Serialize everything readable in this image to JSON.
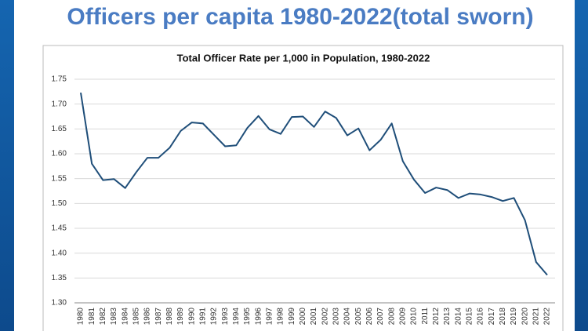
{
  "slide_title": "Officers per capita 1980-2022(total sworn)",
  "chart_data": {
    "type": "line",
    "title": "Total Officer Rate per 1,000 in Population, 1980-2022",
    "categories": [
      "1980",
      "1981",
      "1982",
      "1983",
      "1984",
      "1985",
      "1986",
      "1987",
      "1988",
      "1989",
      "1990",
      "1991",
      "1992",
      "1993",
      "1994",
      "1995",
      "1996",
      "1997",
      "1998",
      "1999",
      "2000",
      "2001",
      "2002",
      "2003",
      "2004",
      "2005",
      "2006",
      "2007",
      "2008",
      "2009",
      "2010",
      "2011",
      "2012",
      "2013",
      "2014",
      "2015",
      "2016",
      "2017",
      "2018",
      "2019",
      "2020",
      "2021",
      "2022"
    ],
    "values": [
      1.723,
      1.58,
      1.547,
      1.549,
      1.531,
      1.563,
      1.592,
      1.592,
      1.612,
      1.646,
      1.663,
      1.661,
      1.638,
      1.615,
      1.617,
      1.652,
      1.676,
      1.649,
      1.64,
      1.674,
      1.675,
      1.654,
      1.685,
      1.672,
      1.637,
      1.651,
      1.607,
      1.628,
      1.661,
      1.585,
      1.548,
      1.521,
      1.532,
      1.527,
      1.511,
      1.52,
      1.518,
      1.513,
      1.505,
      1.511,
      1.466,
      1.382,
      1.356
    ],
    "color": "#1f4e79",
    "ylim": [
      1.3,
      1.75
    ],
    "yticks": [
      {
        "value": 1.3,
        "label": "1.30"
      },
      1.35,
      {
        "value": 1.4,
        "label": "1.40"
      },
      1.45,
      {
        "value": 1.5,
        "label": "1.50"
      },
      1.55,
      {
        "value": 1.6,
        "label": "1.60"
      },
      1.65,
      {
        "value": 1.7,
        "label": "1.70"
      },
      1.75
    ],
    "grid": true
  }
}
